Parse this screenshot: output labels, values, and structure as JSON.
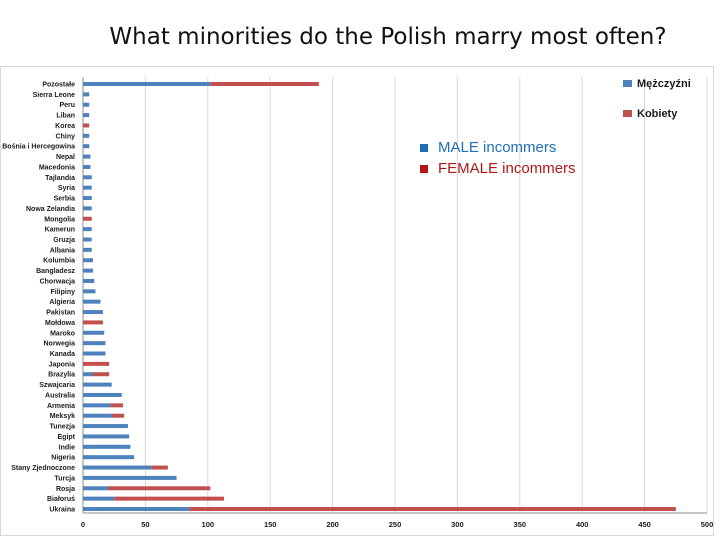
{
  "title": "What minorities do the Polish marry most often?",
  "legend_overlay": [
    {
      "label": "MALE  incommers",
      "color": "#1f6fb5"
    },
    {
      "label": "FEMALE incommers",
      "color": "#b01818"
    }
  ],
  "chart_data": {
    "type": "bar",
    "orientation": "horizontal",
    "stacked": true,
    "categories": [
      "Pozostałe",
      "Sierra Leone",
      "Peru",
      "Liban",
      "Korea",
      "Chiny",
      "Bośnia i Hercegowina",
      "Nepal",
      "Macedonia",
      "Tajlandia",
      "Syria",
      "Serbia",
      "Nowa Zelandia",
      "Mongolia",
      "Kamerun",
      "Gruzja",
      "Albania",
      "Kolumbia",
      "Bangladesz",
      "Chorwacja",
      "Filipiny",
      "Algieria",
      "Pakistan",
      "Mołdowa",
      "Maroko",
      "Norwegia",
      "Kanada",
      "Japonia",
      "Brazylia",
      "Szwajcaria",
      "Australia",
      "Armenia",
      "Meksyk",
      "Tunezja",
      "Egipt",
      "Indie",
      "Nigeria",
      "Stany Zjednoczone",
      "Turcja",
      "Rosja",
      "Białoruś",
      "Ukraina"
    ],
    "series": [
      {
        "name": "Mężczyźni",
        "color": "#4f81bd",
        "values": [
          102,
          5,
          5,
          5,
          0,
          5,
          5,
          6,
          6,
          7,
          7,
          7,
          7,
          0,
          7,
          7,
          7,
          8,
          8,
          9,
          10,
          14,
          16,
          0,
          17,
          18,
          18,
          0,
          8,
          23,
          31,
          22,
          23,
          36,
          37,
          38,
          41,
          55,
          75,
          20,
          25,
          85
        ]
      },
      {
        "name": "Kobiety",
        "color": "#c0504d",
        "values": [
          87,
          0,
          0,
          0,
          5,
          0,
          0,
          0,
          0,
          0,
          0,
          0,
          0,
          7,
          0,
          0,
          0,
          0,
          0,
          0,
          0,
          0,
          0,
          16,
          0,
          0,
          0,
          21,
          13,
          0,
          0,
          10,
          10,
          0,
          0,
          0,
          0,
          13,
          0,
          82,
          88,
          390
        ]
      }
    ],
    "xlim": [
      0,
      500
    ],
    "xticks": [
      0,
      50,
      100,
      150,
      200,
      250,
      300,
      350,
      400,
      450,
      500
    ],
    "grid": true,
    "legend_position": "top-right"
  }
}
